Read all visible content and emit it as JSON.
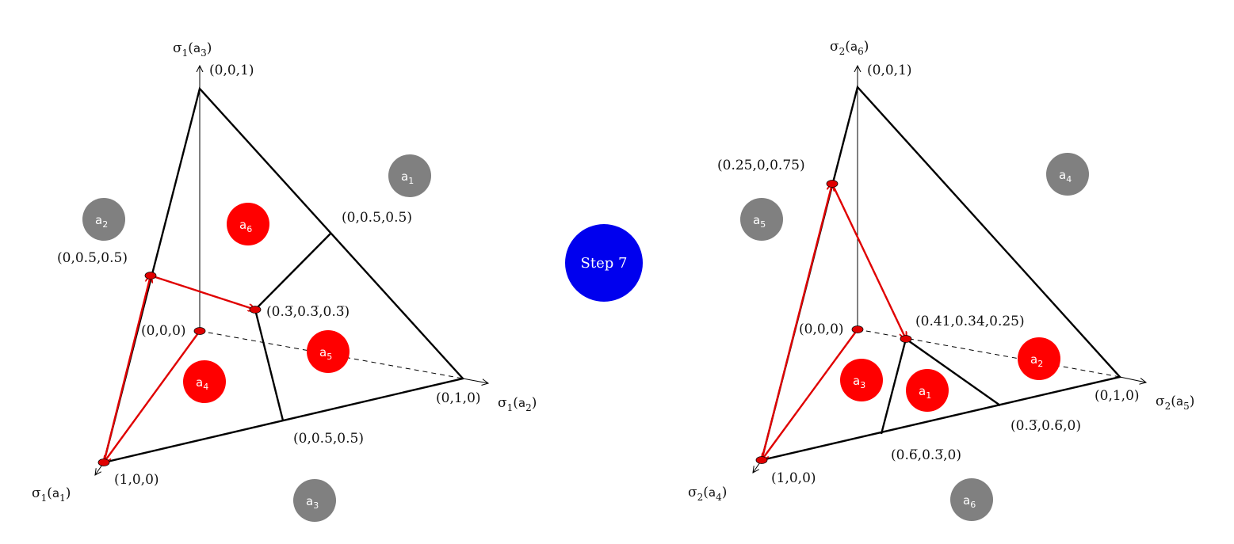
{
  "step": {
    "label": "Step 7",
    "color": "#0000ee"
  },
  "colors": {
    "red": "#ff0000",
    "grey": "#808080",
    "path": "#e00000"
  },
  "left": {
    "axis_top": {
      "sym": "σ",
      "sub": "1",
      "arg": "a",
      "argsub": "3"
    },
    "axis_right": {
      "sym": "σ",
      "sub": "1",
      "arg": "a",
      "argsub": "2"
    },
    "axis_left": {
      "sym": "σ",
      "sub": "1",
      "arg": "a",
      "argsub": "1"
    },
    "labels": {
      "top": "(0,0,1)",
      "origin": "(0,0,0)",
      "right": "(0,1,0)",
      "bottom": "(1,0,0)",
      "mid_left": "(0,0.5,0.5)",
      "mid_upper_right": "(0,0.5,0.5)",
      "mid_bottom": "(0,0.5,0.5)",
      "center": "(0.3̅,0.3̅,0.3̅)"
    },
    "regions_red": [
      {
        "name": "a",
        "sub": "6"
      },
      {
        "name": "a",
        "sub": "5"
      },
      {
        "name": "a",
        "sub": "4"
      }
    ],
    "regions_grey": [
      {
        "name": "a",
        "sub": "1"
      },
      {
        "name": "a",
        "sub": "2"
      },
      {
        "name": "a",
        "sub": "3"
      }
    ]
  },
  "right": {
    "axis_top": {
      "sym": "σ",
      "sub": "2",
      "arg": "a",
      "argsub": "6"
    },
    "axis_right": {
      "sym": "σ",
      "sub": "2",
      "arg": "a",
      "argsub": "5"
    },
    "axis_left": {
      "sym": "σ",
      "sub": "2",
      "arg": "a",
      "argsub": "4"
    },
    "labels": {
      "top": "(0,0,1)",
      "origin": "(0,0,0)",
      "right": "(0,1,0)",
      "bottom": "(1,0,0)",
      "left_point": "(0.25,0,0.75)",
      "inner_point": "(0.41,0.34,0.25)",
      "mid_bottom_right": "(0.3̅,0.6̅,0)",
      "mid_bottom_left": "(0.6̅,0.3̅,0)"
    },
    "regions_red": [
      {
        "name": "a",
        "sub": "3"
      },
      {
        "name": "a",
        "sub": "1"
      },
      {
        "name": "a",
        "sub": "2"
      }
    ],
    "regions_grey": [
      {
        "name": "a",
        "sub": "4"
      },
      {
        "name": "a",
        "sub": "5"
      },
      {
        "name": "a",
        "sub": "6"
      }
    ]
  }
}
